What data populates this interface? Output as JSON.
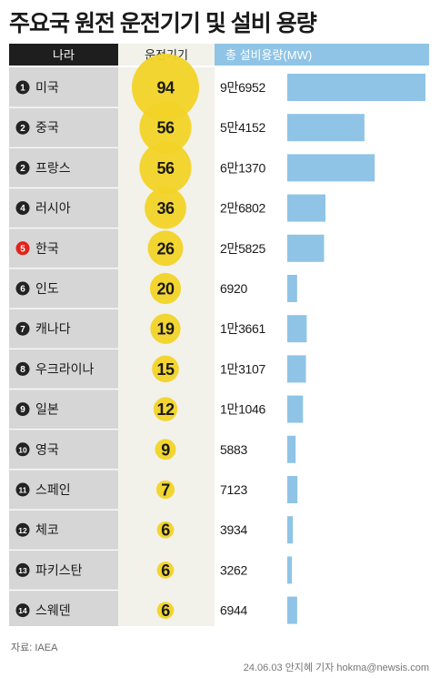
{
  "header": {
    "title": "주요국 원전 운전기기 및 설비 용량",
    "col_country": "나라",
    "col_units": "운전기기",
    "col_capacity": "총 설비용량(MW)"
  },
  "source": "자료: IAEA",
  "credit": "24.06.03 안지혜 기자 hokma@newsis.com",
  "colors": {
    "header_bg": "#1e1e1e",
    "country_bg": "#d6d6d6",
    "units_bg": "#f2f2ea",
    "bubble": "#f2d327",
    "bar": "#8fc4e6",
    "rank_badge": "#222222",
    "highlight_badge": "#e2231a"
  },
  "chart_data": {
    "type": "table",
    "title": "주요국 원전 운전기기 및 설비 용량",
    "columns": [
      "나라",
      "운전기기",
      "총 설비용량(MW)"
    ],
    "rows": [
      {
        "rank": "1",
        "country": "미국",
        "units": 94,
        "capacity_label": "9만6952",
        "capacity": 96952
      },
      {
        "rank": "2",
        "country": "중국",
        "units": 56,
        "capacity_label": "5만4152",
        "capacity": 54152
      },
      {
        "rank": "2",
        "country": "프랑스",
        "units": 56,
        "capacity_label": "6만1370",
        "capacity": 61370
      },
      {
        "rank": "4",
        "country": "러시아",
        "units": 36,
        "capacity_label": "2만6802",
        "capacity": 26802
      },
      {
        "rank": "5",
        "country": "한국",
        "units": 26,
        "capacity_label": "2만5825",
        "capacity": 25825,
        "highlight": true
      },
      {
        "rank": "6",
        "country": "인도",
        "units": 20,
        "capacity_label": "6920",
        "capacity": 6920
      },
      {
        "rank": "7",
        "country": "캐나다",
        "units": 19,
        "capacity_label": "1만3661",
        "capacity": 13661
      },
      {
        "rank": "8",
        "country": "우크라이나",
        "units": 15,
        "capacity_label": "1만3107",
        "capacity": 13107
      },
      {
        "rank": "9",
        "country": "일본",
        "units": 12,
        "capacity_label": "1만1046",
        "capacity": 11046
      },
      {
        "rank": "10",
        "country": "영국",
        "units": 9,
        "capacity_label": "5883",
        "capacity": 5883
      },
      {
        "rank": "11",
        "country": "스페인",
        "units": 7,
        "capacity_label": "7123",
        "capacity": 7123
      },
      {
        "rank": "12",
        "country": "체코",
        "units": 6,
        "capacity_label": "3934",
        "capacity": 3934
      },
      {
        "rank": "13",
        "country": "파키스탄",
        "units": 6,
        "capacity_label": "3262",
        "capacity": 3262
      },
      {
        "rank": "14",
        "country": "스웨덴",
        "units": 6,
        "capacity_label": "6944",
        "capacity": 6944
      }
    ]
  }
}
